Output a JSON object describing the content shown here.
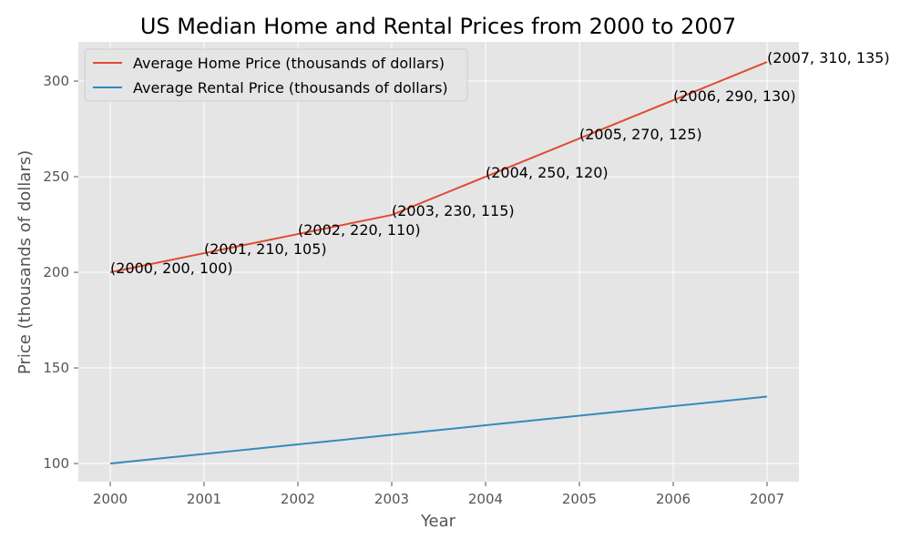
{
  "chart_data": {
    "type": "line",
    "title": "US Median Home and Rental Prices from 2000 to 2007",
    "xlabel": "Year",
    "ylabel": "Price (thousands of dollars)",
    "x": [
      2000,
      2001,
      2002,
      2003,
      2004,
      2005,
      2006,
      2007
    ],
    "xlim": [
      1999.66,
      2007.34
    ],
    "ylim": [
      90.5,
      320.5
    ],
    "yticks": [
      100,
      150,
      200,
      250,
      300
    ],
    "grid": true,
    "legend_position": "top-left",
    "series": [
      {
        "name": "Average Home Price (thousands of dollars)",
        "values": [
          200,
          210,
          220,
          230,
          250,
          270,
          290,
          310
        ],
        "color": "#E24A33"
      },
      {
        "name": "Average Rental Price (thousands of dollars)",
        "values": [
          100,
          105,
          110,
          115,
          120,
          125,
          130,
          135
        ],
        "color": "#348ABD"
      }
    ],
    "annotations": [
      "(2000, 200, 100)",
      "(2001, 210, 105)",
      "(2002, 220, 110)",
      "(2003, 230, 115)",
      "(2004, 250, 120)",
      "(2005, 270, 125)",
      "(2006, 290, 130)",
      "(2007, 310, 135)"
    ],
    "colors": {
      "plot_background": "#E5E5E5",
      "grid": "#FFFFFF",
      "tick_label": "#555555",
      "text": "#000000"
    }
  }
}
